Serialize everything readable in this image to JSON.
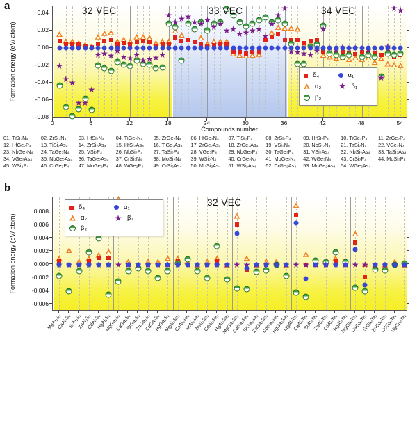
{
  "figure": {
    "panel_a_label": "a",
    "panel_b_label": "b"
  },
  "chart_data": [
    {
      "type": "scatter",
      "panel": "a",
      "xlabel": "Compounds number",
      "ylabel": "Formation energy (eV/ atom)",
      "xlim": [
        0,
        55
      ],
      "ylim": [
        -0.082,
        0.048
      ],
      "grid": true,
      "yticks": [
        "0.04",
        "0.02",
        "0.00",
        "-0.02",
        "-0.04",
        "-0.06",
        "-0.08"
      ],
      "xticks": [
        "0",
        "6",
        "12",
        "18",
        "24",
        "30",
        "36",
        "42",
        "48",
        "54"
      ],
      "regions": [
        {
          "label": "32 VEC",
          "x_start": 0,
          "x_end": 18.5,
          "background": "yellow"
        },
        {
          "label": "33 VEC",
          "x_start": 18.5,
          "x_end": 36.5,
          "background": "blue"
        },
        {
          "label": "34 VEC",
          "x_start": 36.5,
          "x_end": 55,
          "background": "yellow"
        }
      ],
      "legend_position": "lower right",
      "series": [
        {
          "name": "δ₄",
          "marker": "filled-square",
          "color": "#e2231a",
          "values": [
            0.008,
            0.005,
            0.005,
            0.004,
            0.002,
            0.001,
            0.005,
            0.008,
            0.009,
            0.004,
            0.006,
            0.004,
            0.007,
            0.008,
            0.007,
            0.002,
            0.004,
            0.005,
            0.012,
            0.008,
            0.01,
            0.007,
            0.004,
            0.002,
            0.003,
            0.005,
            0.004,
            -0.004,
            -0.005,
            -0.006,
            -0.005,
            -0.004,
            0.009,
            0.013,
            0.016,
            0.01,
            0.01,
            0.01,
            0.006,
            0.008,
            0.009,
            -0.004,
            -0.006,
            -0.006,
            -0.005,
            -0.006,
            -0.007,
            -0.005,
            -0.006,
            -0.006,
            -0.008,
            -0.005,
            -0.01,
            -0.008
          ]
        },
        {
          "name": "α₂",
          "marker": "open-triangle",
          "color": "#f08223",
          "values": [
            0.016,
            0.008,
            0.008,
            0.006,
            0.004,
            0.002,
            0.013,
            0.017,
            0.018,
            0.008,
            0.01,
            0.008,
            0.013,
            0.013,
            0.012,
            0.006,
            0.008,
            0.008,
            0.02,
            0.015,
            0.028,
            0.022,
            0.012,
            0.005,
            0.008,
            0.008,
            0.008,
            -0.006,
            -0.008,
            -0.009,
            -0.008,
            -0.007,
            0.012,
            0.018,
            0.024,
            0.023,
            0.023,
            0.022,
            0.004,
            0.006,
            0.007,
            -0.008,
            -0.01,
            -0.012,
            -0.011,
            -0.013,
            -0.011,
            -0.013,
            -0.011,
            -0.016,
            -0.012,
            -0.018,
            -0.019,
            -0.02
          ]
        },
        {
          "name": "β₂",
          "marker": "half-filled-circle",
          "color": "#2e8b2e",
          "values": [
            -0.043,
            -0.068,
            -0.078,
            -0.07,
            -0.058,
            -0.071,
            -0.02,
            -0.023,
            -0.026,
            -0.016,
            -0.019,
            -0.021,
            -0.014,
            -0.018,
            -0.019,
            -0.023,
            -0.022,
            0.028,
            0.024,
            -0.014,
            0.028,
            0.022,
            0.03,
            0.02,
            0.028,
            0.03,
            0.045,
            0.038,
            0.03,
            0.025,
            0.028,
            0.032,
            0.035,
            0.03,
            0.032,
            0.028,
            0.005,
            -0.018,
            -0.018,
            0.002,
            0.004,
            0.026,
            -0.006,
            -0.008,
            -0.01,
            -0.008,
            -0.037,
            -0.01,
            -0.008,
            -0.01,
            -0.033,
            -0.006,
            -0.008,
            -0.006
          ]
        },
        {
          "name": "α₁",
          "marker": "filled-circle",
          "color": "#3547d4",
          "values": [
            0,
            0,
            0,
            0,
            0,
            0,
            0,
            0,
            0,
            0,
            0,
            0,
            0,
            0,
            0,
            0,
            0,
            0,
            0,
            0,
            0,
            0,
            0,
            0,
            0,
            0,
            0,
            0,
            0,
            0,
            0,
            0,
            0,
            0,
            0,
            0,
            0,
            0,
            0,
            0,
            0,
            0,
            0,
            0,
            0,
            0,
            0,
            0,
            0,
            0,
            0,
            0,
            0,
            0
          ]
        },
        {
          "name": "β₁",
          "marker": "filled-star",
          "color": "#7a1b8e",
          "values": [
            -0.021,
            -0.036,
            -0.04,
            -0.063,
            -0.063,
            -0.048,
            -0.008,
            -0.006,
            -0.009,
            -0.003,
            -0.01,
            -0.012,
            -0.008,
            -0.014,
            -0.013,
            -0.011,
            -0.008,
            0.038,
            0.03,
            0.034,
            0.036,
            0.03,
            0.028,
            0.032,
            0.024,
            0.028,
            0.02,
            0.022,
            0.016,
            0.018,
            0.02,
            0.022,
            0.014,
            0.028,
            0.038,
            0.046,
            -0.004,
            -0.005,
            -0.006,
            -0.008,
            -0.003,
            0.022,
            0.0,
            -0.002,
            0.001,
            -0.001,
            0.0,
            -0.038,
            -0.002,
            0.0,
            -0.034,
            0.002,
            0.046,
            0.043
          ]
        }
      ]
    },
    {
      "type": "scatter",
      "panel": "b",
      "xlabel": "",
      "ylabel": "Formation energy (eV/ atom)",
      "ylim": [
        -0.007,
        0.0102
      ],
      "grid": true,
      "yticks": [
        "0.008",
        "0.006",
        "0.004",
        "0.002",
        "0.000",
        "-0.002",
        "-0.004",
        "-0.006"
      ],
      "regions": [
        {
          "label": "32 VEC",
          "x_start": 0,
          "x_end": 36.5,
          "background": "yellow"
        }
      ],
      "legend_position": "upper left",
      "categories": [
        "MgAl₂S₄",
        "CaAl₂S₄",
        "SrAl₂S₄",
        "ZnAl₂S₄",
        "CdAl₂S₄",
        "HgAl₂S₄",
        "MgGa₂S₄",
        "CaGa₂S₄",
        "SrGa₂S₄",
        "ZnGa₂S₄",
        "CdGa₂S₄",
        "HgGa₂S₄",
        "MgAl₂Se₄",
        "CaAl₂Se₄",
        "SrAl₂Se₄",
        "ZnAl₂Se₄",
        "CdAl₂Se₄",
        "HgAl₂Se₄",
        "MgGa₂Se₄",
        "CaGa₂Se₄",
        "SrGa₂Se₄",
        "ZnGa₂Se₄",
        "CdGa₂Se₄",
        "HgGa₂Se₄",
        "MgAl₂Te₄",
        "CaAl₂Te₄",
        "SrAl₂Te₄",
        "ZnAl₂Te₄",
        "CdAl₂Te₄",
        "HgAl₂Te₄",
        "MgGa₂Te₄",
        "CaGa₂Te₄",
        "SrGa₂Te₄",
        "ZnGa₂Te₄",
        "CdGa₂Te₄",
        "HgGa₂Te₄"
      ],
      "series": [
        {
          "name": "δ₄",
          "marker": "filled-square",
          "color": "#e2231a",
          "values": [
            0.0005,
            0.0,
            0.0,
            0.0005,
            0.001,
            0.001,
            0.0094,
            0.0,
            0.0,
            0.0,
            0.0,
            0.0,
            0.0005,
            0.0,
            0.0,
            0.0,
            0.0005,
            0.0,
            0.0061,
            -0.0008,
            0.0,
            0.0,
            0.0,
            0.0,
            0.0076,
            0.0,
            0.0,
            0.0,
            0.0005,
            0.0,
            0.0034,
            -0.0018,
            0.0,
            0.0,
            0.0,
            0.0
          ]
        },
        {
          "name": "α₂",
          "marker": "open-triangle",
          "color": "#f08223",
          "values": [
            0.001,
            0.0022,
            0.0005,
            0.001,
            0.0015,
            0.002,
            0.01,
            0.0005,
            0.0,
            0.0005,
            0.0005,
            0.001,
            0.001,
            0.0005,
            0.0,
            0.0005,
            0.001,
            0.0,
            0.0074,
            0.001,
            0.0,
            0.0005,
            0.0005,
            0.0,
            0.009,
            0.0016,
            0.0005,
            0.0005,
            0.001,
            0.0005,
            0.0047,
            0.0001,
            0.0,
            0.0,
            0.0005,
            0.0
          ]
        },
        {
          "name": "β₂",
          "marker": "half-filled-circle",
          "color": "#2e8b2e",
          "values": [
            -0.0017,
            -0.004,
            -0.001,
            0.0019,
            0.004,
            -0.0045,
            -0.0025,
            -0.001,
            -0.0005,
            -0.001,
            -0.002,
            -0.001,
            0.0002,
            0.0008,
            -0.001,
            -0.002,
            0.0028,
            -0.0022,
            -0.0036,
            -0.0037,
            -0.0011,
            -0.0008,
            0.0,
            -0.0017,
            -0.0042,
            -0.0048,
            0.0006,
            0.0004,
            0.0019,
            0.0004,
            -0.0035,
            -0.004,
            -0.0007,
            -0.0008,
            0.0,
            0.0002
          ]
        },
        {
          "name": "α₁",
          "marker": "filled-circle",
          "color": "#3547d4",
          "values": [
            0,
            0,
            0,
            0,
            0,
            0,
            0.0082,
            0,
            0,
            0,
            0,
            0,
            0,
            0,
            0,
            0,
            0,
            0,
            0.0047,
            -0.0005,
            0,
            0,
            0,
            0,
            0.0063,
            -0.0021,
            0,
            0,
            0,
            0,
            0.0023,
            -0.0031,
            0,
            0,
            0,
            0
          ]
        },
        {
          "name": "β₁",
          "marker": "filled-star",
          "color": "#7a1b8e",
          "values": [
            0,
            0,
            0,
            0,
            0,
            0,
            0,
            0,
            0,
            0,
            0,
            0,
            0,
            0,
            0,
            0,
            0,
            0,
            0,
            0,
            0,
            0,
            0,
            0,
            0,
            0,
            0,
            0,
            0,
            0,
            0,
            0,
            0,
            0,
            0,
            0
          ]
        }
      ]
    }
  ],
  "compound_list": [
    "01. TiSi₂N₄",
    "02. ZrSi₂N₄",
    "03. HfSi₂N₄",
    "04. TiGe₂N₄",
    "05. ZrGe₂N₄",
    "06. HfGe₂N₄",
    "07. TiSi₂P₄",
    "08. ZrSi₂P₄",
    "09. HfSi₂P₄",
    "10. TiGe₂P₄",
    "11. ZrGe₂P₄",
    "12. HfGe₂P₄",
    "13. TiSi₂As₄",
    "14. ZrSi₂As₄",
    "15. HfSi₂As₄",
    "16. TiGe₂As₄",
    "17. ZrGe₂As₄",
    "18. ZrGe₂As₄",
    "19. VSi₂N₄",
    "20. NbSi₂N₄",
    "21. TaSi₂N₄",
    "22. VGe₂N₄",
    "23. NbGe₂N₄",
    "24. TaGe₂N₄",
    "25. VSi₂P₄",
    "26. NbSi₂P₄",
    "27. TaSi₂P₄",
    "28. VGe₂P₄",
    "29. NbGe₂P₄",
    "30. TaGe₂P₄",
    "31. VSi₂As₄",
    "32. NbSi₂As₄",
    "33. TaSi₂As₄",
    "34. VGe₂As₄",
    "35. NbGe₂As₄",
    "36. TaGe₂As₄",
    "37. CrSi₂N₄",
    "38. MoSi₂N₄",
    "39. WSi₂N₄",
    "40. CrGe₂N₄",
    "41. MoGe₂N₄",
    "42. WGe₂N₄",
    "43. CrSi₂P₄",
    "44. MoSi₂P₄",
    "45. WSi₂P₄",
    "46. CrGe₂P₄",
    "47. MoGe₂P₄",
    "48. WGe₂P₄",
    "49. CrSi₂As₄",
    "50. MoSi₂As₄",
    "51. WSi₂As₄",
    "52. CrGe₂As₄",
    "53. MoGe₂As₄",
    "54. WGe₂As₄"
  ]
}
